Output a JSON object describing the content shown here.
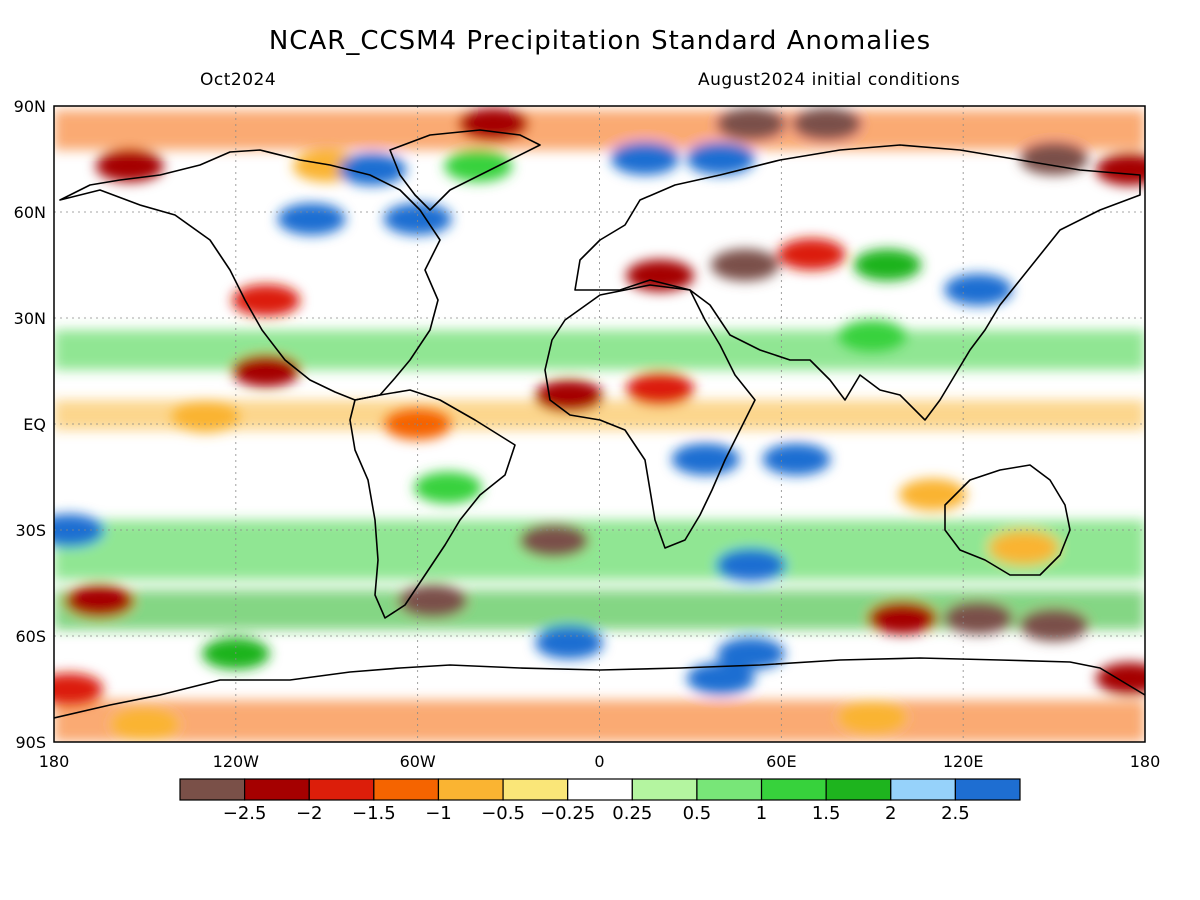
{
  "header": {
    "title": "NCAR_CCSM4 Precipitation Standard Anomalies",
    "target_month": "Oct2024",
    "initial_conditions": "August2024 initial conditions"
  },
  "map": {
    "projection": "equirectangular",
    "lon_range": [
      -180,
      180
    ],
    "lat_range": [
      -90,
      90
    ],
    "lat_labels": [
      {
        "lat": 90,
        "text": "90N"
      },
      {
        "lat": 60,
        "text": "60N"
      },
      {
        "lat": 30,
        "text": "30N"
      },
      {
        "lat": 0,
        "text": "EQ"
      },
      {
        "lat": -30,
        "text": "30S"
      },
      {
        "lat": -60,
        "text": "60S"
      },
      {
        "lat": -90,
        "text": "90S"
      }
    ],
    "lon_labels": [
      {
        "lon": -180,
        "text": "180"
      },
      {
        "lon": -120,
        "text": "120W"
      },
      {
        "lon": -60,
        "text": "60W"
      },
      {
        "lon": 0,
        "text": "0"
      },
      {
        "lon": 60,
        "text": "60E"
      },
      {
        "lon": 120,
        "text": "120E"
      },
      {
        "lon": 180,
        "text": "180"
      }
    ],
    "gridlines": true,
    "background_color": "#ffffff",
    "coastline_color": "#000000"
  },
  "colorbar": {
    "colors": [
      "#7a5048",
      "#a50000",
      "#dc1e0a",
      "#f56400",
      "#fab432",
      "#fae678",
      "#ffffff",
      "#b4f5a0",
      "#78e678",
      "#37d23c",
      "#1eb41e",
      "#96d2fa",
      "#1e6ed2"
    ],
    "labels": [
      "−2.5",
      "−2",
      "−1.5",
      "−1",
      "−0.5",
      "−0.25",
      "0.25",
      "0.5",
      "1",
      "1.5",
      "2",
      "2.5"
    ]
  },
  "anomaly_regions": [
    {
      "lon": -155,
      "lat": 73,
      "level": "-2"
    },
    {
      "lon": -110,
      "lat": 35,
      "level": "-1.5"
    },
    {
      "lon": -110,
      "lat": 15,
      "level": "-2"
    },
    {
      "lon": -90,
      "lat": 73,
      "level": "-0.5"
    },
    {
      "lon": -75,
      "lat": 72,
      "level": "2.5"
    },
    {
      "lon": -95,
      "lat": 58,
      "level": "2.5"
    },
    {
      "lon": -60,
      "lat": 58,
      "level": "2.5"
    },
    {
      "lon": -40,
      "lat": 73,
      "level": "1"
    },
    {
      "lon": -35,
      "lat": 85,
      "level": "-2"
    },
    {
      "lon": 15,
      "lat": 75,
      "level": "2.5"
    },
    {
      "lon": 40,
      "lat": 75,
      "level": "2.5"
    },
    {
      "lon": 50,
      "lat": 85,
      "level": "-2.5"
    },
    {
      "lon": 75,
      "lat": 85,
      "level": "-2.5"
    },
    {
      "lon": 150,
      "lat": 75,
      "level": "-2.5"
    },
    {
      "lon": 175,
      "lat": 72,
      "level": "-2"
    },
    {
      "lon": 48,
      "lat": 45,
      "level": "-2.5"
    },
    {
      "lon": 20,
      "lat": 42,
      "level": "-2"
    },
    {
      "lon": 70,
      "lat": 48,
      "level": "-1.5"
    },
    {
      "lon": 125,
      "lat": 38,
      "level": "2.5"
    },
    {
      "lon": 95,
      "lat": 45,
      "level": "1.5"
    },
    {
      "lon": 90,
      "lat": 25,
      "level": "1"
    },
    {
      "lon": 20,
      "lat": 10,
      "level": "-1.5"
    },
    {
      "lon": -10,
      "lat": 8,
      "level": "-2"
    },
    {
      "lon": 35,
      "lat": -10,
      "level": "2.5"
    },
    {
      "lon": 65,
      "lat": -10,
      "level": "2.5"
    },
    {
      "lon": -130,
      "lat": 2,
      "level": "-0.5"
    },
    {
      "lon": -60,
      "lat": 0,
      "level": "-1"
    },
    {
      "lon": -50,
      "lat": -18,
      "level": "1"
    },
    {
      "lon": -15,
      "lat": -33,
      "level": "-2.5"
    },
    {
      "lon": 50,
      "lat": -40,
      "level": "2.5"
    },
    {
      "lon": 110,
      "lat": -20,
      "level": "-0.5"
    },
    {
      "lon": 140,
      "lat": -35,
      "level": "-0.5"
    },
    {
      "lon": -165,
      "lat": -50,
      "level": "-2"
    },
    {
      "lon": -175,
      "lat": -30,
      "level": "2.5"
    },
    {
      "lon": -55,
      "lat": -50,
      "level": "-2.5"
    },
    {
      "lon": 125,
      "lat": -55,
      "level": "-2.5"
    },
    {
      "lon": 150,
      "lat": -57,
      "level": "-2.5"
    },
    {
      "lon": 100,
      "lat": -55,
      "level": "-2"
    },
    {
      "lon": -10,
      "lat": -62,
      "level": "2.5"
    },
    {
      "lon": 50,
      "lat": -65,
      "level": "2.5"
    },
    {
      "lon": 40,
      "lat": -72,
      "level": "2.5"
    },
    {
      "lon": -120,
      "lat": -65,
      "level": "1.5"
    },
    {
      "lon": -175,
      "lat": -75,
      "level": "-1.5"
    },
    {
      "lon": 175,
      "lat": -72,
      "level": "-2"
    },
    {
      "lon": -150,
      "lat": -85,
      "level": "-0.5"
    },
    {
      "lon": 90,
      "lat": -83,
      "level": "-0.5"
    }
  ]
}
